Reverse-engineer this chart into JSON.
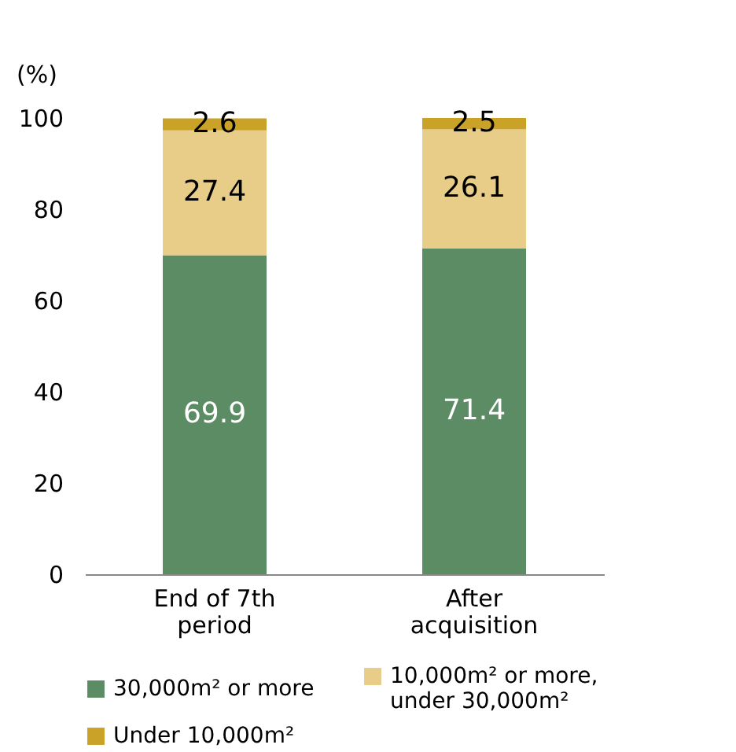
{
  "chart_data": {
    "type": "bar",
    "stacked": true,
    "ylabel": "(%)",
    "categories": [
      "End of 7th period",
      "After acquisition"
    ],
    "series": [
      {
        "name": "30,000m² or more",
        "color": "#5b8c64",
        "values": [
          69.9,
          71.4
        ]
      },
      {
        "name": "10,000m² or more, under 30,000m²",
        "color": "#e8cd88",
        "values": [
          27.4,
          26.1
        ]
      },
      {
        "name": "Under 10,000m²",
        "color": "#c9a227",
        "values": [
          2.6,
          2.5
        ]
      }
    ],
    "ylim": [
      0,
      100
    ],
    "yticks": [
      0,
      20,
      40,
      60,
      80,
      100
    ],
    "grid": false,
    "legend": "bottom",
    "data_labels": true
  }
}
